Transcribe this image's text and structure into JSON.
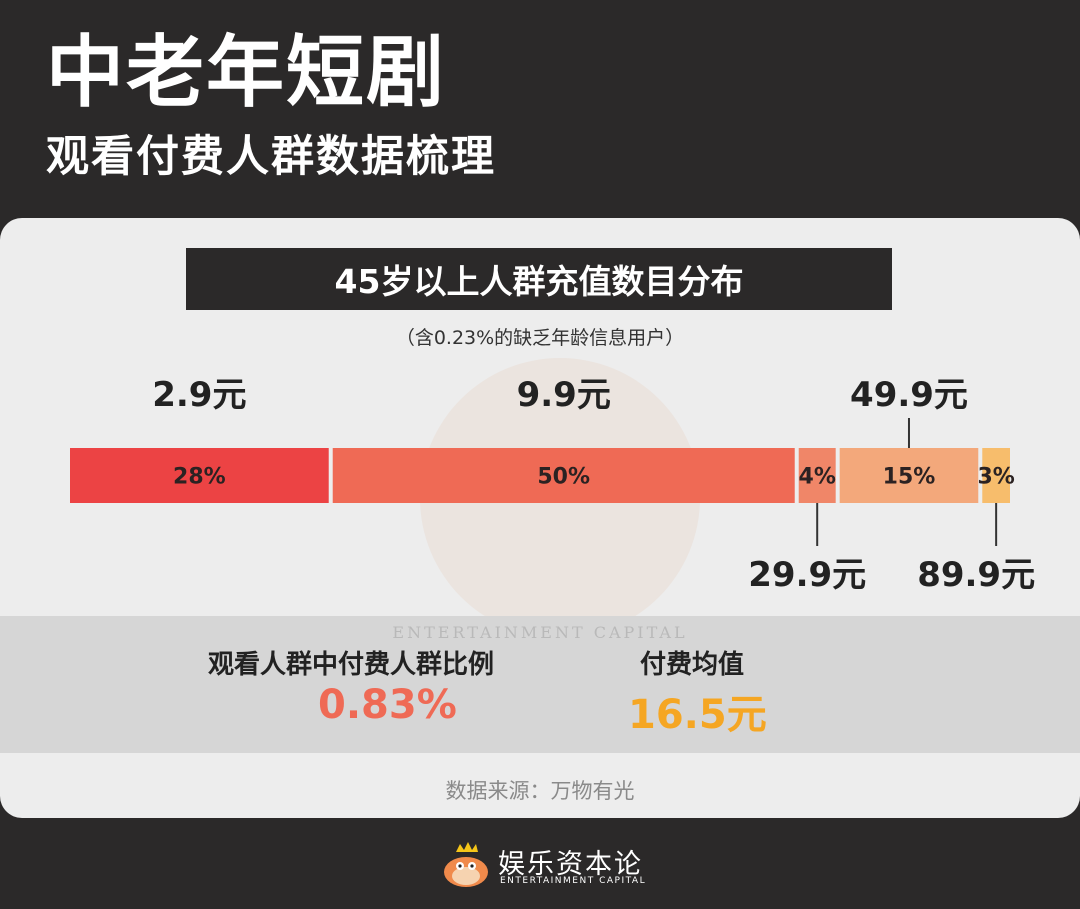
{
  "header": {
    "title": "中老年短剧",
    "subtitle": "观看付费人群数据梳理"
  },
  "chart_data": {
    "type": "bar",
    "title": "45岁以上人群充值数目分布",
    "subtitle": "（含0.23%的缺乏年龄信息用户）",
    "stacked": true,
    "orientation": "horizontal",
    "categories": [
      "2.9元",
      "9.9元",
      "29.9元",
      "49.9元",
      "89.9元"
    ],
    "values": [
      28,
      50,
      4,
      15,
      3
    ],
    "value_labels": [
      "28%",
      "50%",
      "4%",
      "15%",
      "3%"
    ],
    "colors": [
      "#ec4344",
      "#ef6a55",
      "#f08668",
      "#f3a87b",
      "#f7bd6c"
    ]
  },
  "summary": {
    "ratio_label": "观看人群中付费人群比例",
    "ratio_value": "0.83%",
    "ratio_color": "#ef6a55",
    "avg_label": "付费均值",
    "avg_value": "16.5元",
    "avg_color": "#f5a623"
  },
  "source": "数据来源：万物有光",
  "watermark": {
    "en": "ENTERTAINMENT CAPITAL"
  },
  "footer": {
    "name": "娱乐资本论",
    "en": "ENTERTAINMENT CAPITAL",
    "icon": "cartoon-bird-with-crown-icon"
  }
}
